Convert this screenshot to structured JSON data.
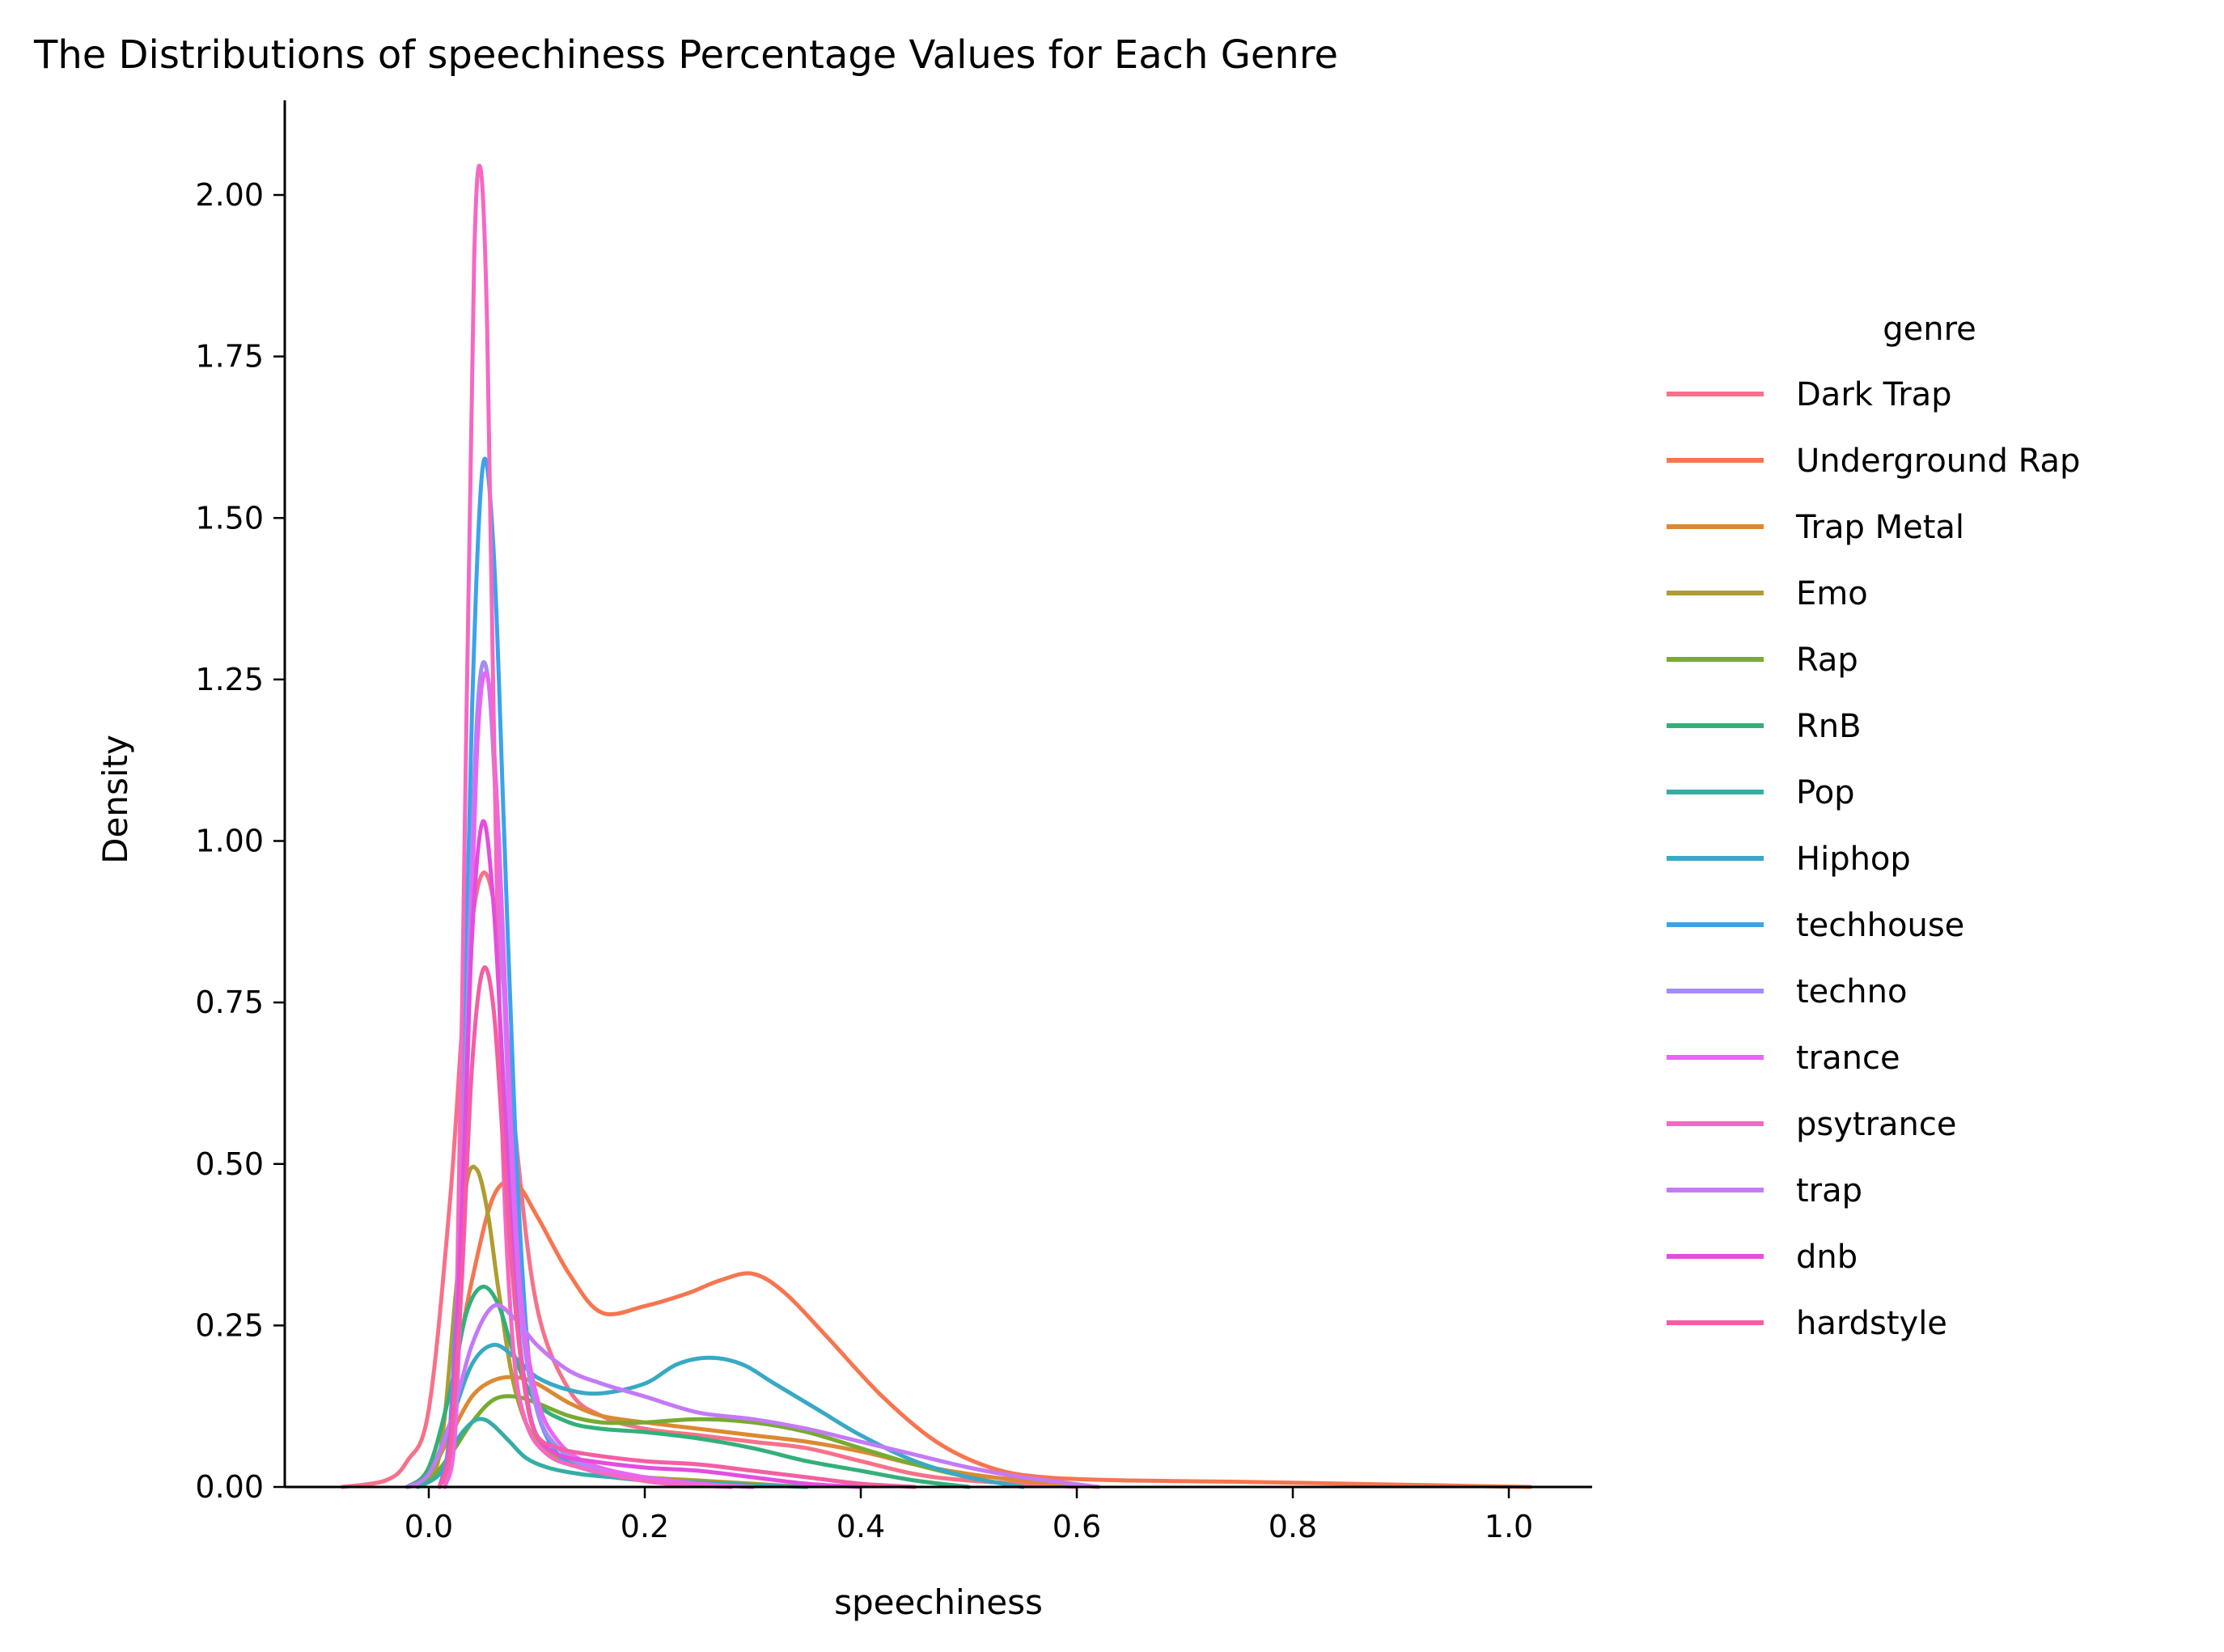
{
  "chart_data": {
    "type": "line",
    "kind": "kde",
    "title": "The Distributions of speechiness Percentage Values for Each Genre",
    "xlabel": "speechiness",
    "ylabel": "Density",
    "xlim": [
      -0.14,
      1.08
    ],
    "ylim": [
      0,
      2.15
    ],
    "xticks": [
      0.0,
      0.2,
      0.4,
      0.6,
      0.8,
      1.0
    ],
    "xtick_labels": [
      "0.0",
      "0.2",
      "0.4",
      "0.6",
      "0.8",
      "1.0"
    ],
    "yticks": [
      0,
      0.25,
      0.5,
      0.75,
      1.0,
      1.25,
      1.5,
      1.75,
      2.0
    ],
    "ytick_labels": [
      "0.00",
      "0.25",
      "0.50",
      "0.75",
      "1.00",
      "1.25",
      "1.50",
      "1.75",
      "2.00"
    ],
    "grid": false,
    "legend": {
      "title": "genre",
      "placement": "right"
    },
    "series": [
      {
        "name": "Dark Trap",
        "color": "#f77189",
        "x": [
          -0.08,
          -0.04,
          -0.02,
          0.0,
          0.02,
          0.035,
          0.05,
          0.065,
          0.08,
          0.1,
          0.13,
          0.16,
          0.2,
          0.25,
          0.3,
          0.35,
          0.4,
          0.45,
          0.5,
          0.6
        ],
        "y": [
          0.0,
          0.01,
          0.04,
          0.12,
          0.45,
          0.8,
          0.95,
          0.85,
          0.55,
          0.28,
          0.15,
          0.11,
          0.09,
          0.08,
          0.07,
          0.06,
          0.04,
          0.02,
          0.01,
          0.0
        ]
      },
      {
        "name": "Underground Rap",
        "color": "#f7754f",
        "x": [
          -0.02,
          0.0,
          0.02,
          0.04,
          0.06,
          0.08,
          0.1,
          0.13,
          0.16,
          0.2,
          0.24,
          0.27,
          0.3,
          0.33,
          0.37,
          0.42,
          0.47,
          0.52,
          0.57,
          0.65,
          0.75,
          0.85,
          0.95,
          1.02
        ],
        "y": [
          0.0,
          0.03,
          0.15,
          0.32,
          0.45,
          0.47,
          0.42,
          0.33,
          0.27,
          0.28,
          0.3,
          0.32,
          0.33,
          0.3,
          0.23,
          0.14,
          0.07,
          0.03,
          0.015,
          0.01,
          0.008,
          0.005,
          0.002,
          0.0
        ]
      },
      {
        "name": "Trap Metal",
        "color": "#dc8932",
        "x": [
          -0.02,
          0.0,
          0.02,
          0.04,
          0.06,
          0.08,
          0.1,
          0.13,
          0.16,
          0.2,
          0.25,
          0.3,
          0.35,
          0.4,
          0.45,
          0.5,
          0.55,
          0.62
        ],
        "y": [
          0.0,
          0.02,
          0.08,
          0.14,
          0.165,
          0.17,
          0.16,
          0.13,
          0.11,
          0.1,
          0.09,
          0.08,
          0.07,
          0.055,
          0.035,
          0.02,
          0.01,
          0.0
        ]
      },
      {
        "name": "Emo",
        "color": "#ae9d31",
        "x": [
          -0.01,
          0.01,
          0.025,
          0.035,
          0.045,
          0.055,
          0.065,
          0.08,
          0.1,
          0.13,
          0.16,
          0.2,
          0.25,
          0.3,
          0.35
        ],
        "y": [
          0.0,
          0.05,
          0.3,
          0.47,
          0.49,
          0.42,
          0.3,
          0.15,
          0.07,
          0.04,
          0.025,
          0.015,
          0.01,
          0.005,
          0.0
        ]
      },
      {
        "name": "Rap",
        "color": "#77ab31",
        "x": [
          -0.02,
          0.0,
          0.02,
          0.04,
          0.06,
          0.08,
          0.1,
          0.13,
          0.16,
          0.2,
          0.25,
          0.3,
          0.35,
          0.4,
          0.45,
          0.5,
          0.55
        ],
        "y": [
          0.0,
          0.01,
          0.05,
          0.1,
          0.135,
          0.14,
          0.13,
          0.11,
          0.1,
          0.1,
          0.105,
          0.1,
          0.085,
          0.06,
          0.035,
          0.015,
          0.0
        ]
      },
      {
        "name": "RnB",
        "color": "#33b07a",
        "x": [
          -0.02,
          0.0,
          0.02,
          0.035,
          0.05,
          0.065,
          0.08,
          0.1,
          0.13,
          0.16,
          0.2,
          0.25,
          0.3,
          0.35,
          0.4,
          0.45,
          0.5
        ],
        "y": [
          0.0,
          0.03,
          0.15,
          0.27,
          0.31,
          0.28,
          0.2,
          0.13,
          0.1,
          0.09,
          0.085,
          0.075,
          0.06,
          0.04,
          0.025,
          0.01,
          0.0
        ]
      },
      {
        "name": "Pop",
        "color": "#36ada4",
        "x": [
          -0.01,
          0.01,
          0.025,
          0.04,
          0.05,
          0.06,
          0.075,
          0.09,
          0.11,
          0.14,
          0.17,
          0.2,
          0.25,
          0.3,
          0.35
        ],
        "y": [
          0.0,
          0.02,
          0.07,
          0.1,
          0.105,
          0.095,
          0.07,
          0.045,
          0.03,
          0.02,
          0.015,
          0.01,
          0.007,
          0.003,
          0.0
        ]
      },
      {
        "name": "Hiphop",
        "color": "#38a9c5",
        "x": [
          -0.02,
          0.0,
          0.02,
          0.04,
          0.06,
          0.08,
          0.1,
          0.13,
          0.16,
          0.2,
          0.23,
          0.26,
          0.29,
          0.32,
          0.36,
          0.4,
          0.45,
          0.5,
          0.55
        ],
        "y": [
          0.0,
          0.02,
          0.1,
          0.19,
          0.22,
          0.2,
          0.17,
          0.15,
          0.145,
          0.16,
          0.19,
          0.2,
          0.19,
          0.16,
          0.12,
          0.08,
          0.04,
          0.015,
          0.0
        ]
      },
      {
        "name": "techhouse",
        "color": "#3ba3ec",
        "x": [
          0.01,
          0.02,
          0.03,
          0.04,
          0.05,
          0.06,
          0.07,
          0.08,
          0.09,
          0.1,
          0.12,
          0.15,
          0.2,
          0.25,
          0.3
        ],
        "y": [
          0.0,
          0.1,
          0.5,
          1.2,
          1.58,
          1.45,
          1.0,
          0.55,
          0.25,
          0.12,
          0.05,
          0.025,
          0.01,
          0.005,
          0.0
        ]
      },
      {
        "name": "techno",
        "color": "#a48cf4",
        "x": [
          0.015,
          0.025,
          0.035,
          0.045,
          0.055,
          0.065,
          0.075,
          0.085,
          0.1,
          0.12,
          0.15,
          0.2,
          0.25,
          0.3
        ],
        "y": [
          0.0,
          0.12,
          0.7,
          1.2,
          1.25,
          0.95,
          0.55,
          0.27,
          0.12,
          0.06,
          0.03,
          0.015,
          0.005,
          0.0
        ]
      },
      {
        "name": "trance",
        "color": "#e866f4",
        "x": [
          0.015,
          0.025,
          0.035,
          0.045,
          0.055,
          0.065,
          0.075,
          0.085,
          0.1,
          0.12,
          0.15,
          0.2,
          0.25,
          0.3
        ],
        "y": [
          0.0,
          0.1,
          0.6,
          1.15,
          1.25,
          1.0,
          0.6,
          0.3,
          0.14,
          0.07,
          0.035,
          0.015,
          0.005,
          0.0
        ]
      },
      {
        "name": "psytrance",
        "color": "#f668c2",
        "x": [
          0.015,
          0.025,
          0.035,
          0.042,
          0.048,
          0.054,
          0.06,
          0.068,
          0.078,
          0.09,
          0.11,
          0.14,
          0.18,
          0.22,
          0.28
        ],
        "y": [
          0.0,
          0.2,
          1.2,
          1.9,
          2.04,
          1.8,
          1.2,
          0.55,
          0.22,
          0.1,
          0.05,
          0.03,
          0.015,
          0.005,
          0.0
        ]
      },
      {
        "name": "trap",
        "color": "#c47af6",
        "x": [
          -0.02,
          0.0,
          0.02,
          0.04,
          0.06,
          0.08,
          0.1,
          0.13,
          0.16,
          0.2,
          0.25,
          0.3,
          0.35,
          0.4,
          0.45,
          0.5,
          0.55,
          0.62
        ],
        "y": [
          0.0,
          0.02,
          0.1,
          0.22,
          0.28,
          0.26,
          0.22,
          0.18,
          0.16,
          0.14,
          0.115,
          0.105,
          0.09,
          0.07,
          0.05,
          0.03,
          0.015,
          0.0
        ]
      },
      {
        "name": "dnb",
        "color": "#e44dde",
        "x": [
          0.01,
          0.02,
          0.03,
          0.04,
          0.05,
          0.06,
          0.07,
          0.08,
          0.09,
          0.1,
          0.12,
          0.15,
          0.2,
          0.25,
          0.3,
          0.35,
          0.4
        ],
        "y": [
          0.0,
          0.08,
          0.4,
          0.85,
          1.03,
          0.9,
          0.6,
          0.3,
          0.15,
          0.08,
          0.05,
          0.04,
          0.03,
          0.025,
          0.015,
          0.005,
          0.0
        ]
      },
      {
        "name": "hardstyle",
        "color": "#f45ea3",
        "x": [
          0.01,
          0.02,
          0.03,
          0.04,
          0.05,
          0.06,
          0.07,
          0.08,
          0.09,
          0.1,
          0.12,
          0.15,
          0.2,
          0.25,
          0.3,
          0.35,
          0.4,
          0.45
        ],
        "y": [
          0.0,
          0.06,
          0.3,
          0.65,
          0.8,
          0.74,
          0.5,
          0.28,
          0.14,
          0.08,
          0.06,
          0.05,
          0.04,
          0.035,
          0.025,
          0.015,
          0.005,
          0.0
        ]
      }
    ]
  }
}
